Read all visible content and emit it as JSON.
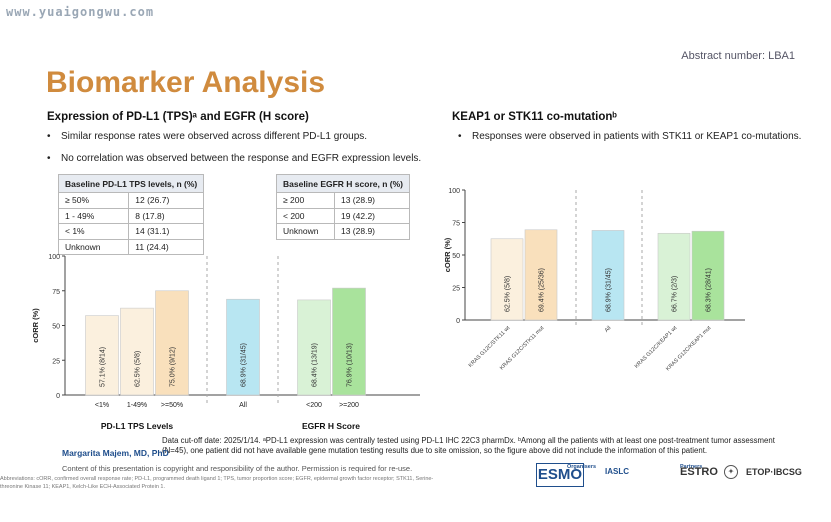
{
  "watermark": "www.yuaigongwu.com",
  "abstract_number": "Abstract number: LBA1",
  "title": "Biomarker Analysis",
  "left": {
    "heading": "Expression of PD-L1 (TPS)ᵃ and EGFR (H score)",
    "bullets": [
      "Similar response rates were observed across different PD-L1 groups.",
      "No correlation was observed between the response and EGFR expression levels."
    ],
    "pdl1_table": {
      "header": "Baseline PD-L1 TPS levels, n (%)",
      "rows": [
        [
          "≥ 50%",
          "12 (26.7)"
        ],
        [
          "1 - 49%",
          "8 (17.8)"
        ],
        [
          "< 1%",
          "14 (31.1)"
        ],
        [
          "Unknown",
          "11 (24.4)"
        ]
      ]
    },
    "egfr_table": {
      "header": "Baseline EGFR H score, n (%)",
      "rows": [
        [
          "≥ 200",
          "13 (28.9)"
        ],
        [
          "< 200",
          "19 (42.2)"
        ],
        [
          "Unknown",
          "13 (28.9)"
        ]
      ]
    }
  },
  "right": {
    "heading": "KEAP1 or STK11 co-mutationᵇ",
    "bullets": [
      "Responses were observed in patients with STK11 or KEAP1 co-mutations."
    ]
  },
  "chart_data": [
    {
      "type": "bar",
      "ylabel": "cORR (%)",
      "ylim": [
        0,
        100
      ],
      "yticks": [
        0,
        25,
        50,
        75,
        100
      ],
      "categories": [
        "<1%",
        "1-49%",
        ">=50%",
        "All",
        "<200",
        ">=200"
      ],
      "values": [
        57.1,
        62.5,
        75.0,
        68.9,
        68.4,
        76.9
      ],
      "labels": [
        "57.1% (8/14)",
        "62.5% (5/8)",
        "75.0% (9/12)",
        "68.9% (31/45)",
        "68.4% (13/19)",
        "76.9% (10/13)"
      ],
      "colors": [
        "#fbf0de",
        "#fbf0de",
        "#f9e0bc",
        "#b8e6f2",
        "#d9f2d6",
        "#a9e39c"
      ],
      "group_labels": [
        "PD-L1 TPS Levels",
        "EGFR H Score"
      ]
    },
    {
      "type": "bar",
      "ylabel": "cORR (%)",
      "ylim": [
        0,
        100
      ],
      "yticks": [
        0,
        25,
        50,
        75,
        100
      ],
      "categories": [
        "KRAS G12C/STK11 wt",
        "KRAS G12C/STK11 mut",
        "All",
        "KRAS G12C/KEAP1 wt",
        "KRAS G12C/KEAP1 mut"
      ],
      "values": [
        62.5,
        69.4,
        68.9,
        66.7,
        68.3
      ],
      "labels": [
        "62.5% (5/8)",
        "69.4% (25/36)",
        "68.9% (31/45)",
        "66.7% (2/3)",
        "68.3% (28/41)"
      ],
      "colors": [
        "#fbf0de",
        "#f9e0bc",
        "#b8e6f2",
        "#d9f2d6",
        "#a9e39c"
      ]
    }
  ],
  "footer": {
    "author": "Margarita Majem, MD, PhD",
    "copyright": "Content of this presentation is copyright and responsibility of the author. Permission is required for re-use.",
    "cutoff": "Data cut-off date: 2025/1/14. ᵃPD-L1 expression was centrally tested using PD-L1 IHC 22C3 pharmDx. ᵇAmong all the patients with at least one post-treatment tumor assessment (N=45), one patient did not have available gene mutation testing results due to site omission, so the figure above did not include the information of this patient.",
    "abbrev": "Abbreviations: cORR, confirmed overall response rate; PD-L1, programmed death ligand 1; TPS, tumor proportion score; EGFR, epidermal growth factor receptor; STK11, Serine-threonine Kinase 11; KEAP1, Kelch-Like ECH-Associated Protein 1.",
    "organisers_label": "Organisers",
    "partners_label": "Partners",
    "logos": [
      "ESMO",
      "IASLC",
      "ESTRO",
      "ETOP·IBCSG"
    ]
  }
}
